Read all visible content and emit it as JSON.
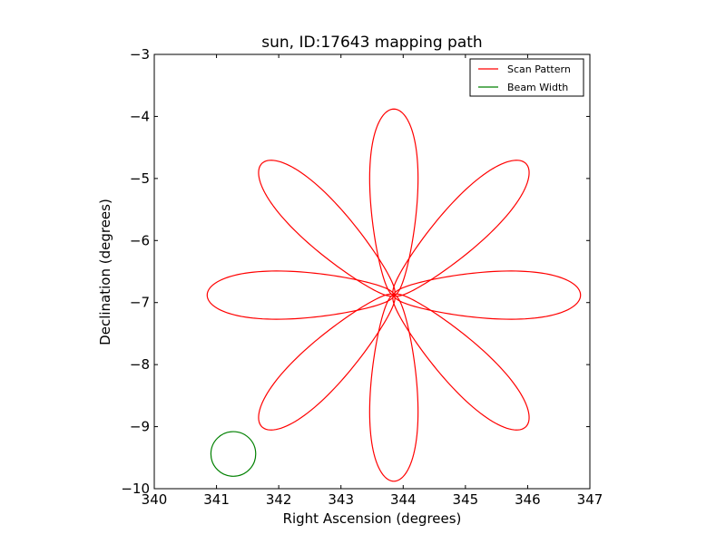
{
  "chart_data": {
    "type": "line",
    "title": "sun, ID:17643 mapping path",
    "xlabel": "Right Ascension (degrees)",
    "ylabel": "Declination (degrees)",
    "xlim": [
      340,
      347
    ],
    "ylim": [
      -10,
      -3
    ],
    "xticks": [
      "340",
      "341",
      "342",
      "343",
      "344",
      "345",
      "346",
      "347"
    ],
    "yticks": [
      "−3",
      "−4",
      "−5",
      "−6",
      "−7",
      "−8",
      "−9",
      "−10"
    ],
    "legend": {
      "placement": "top-right"
    },
    "grid": false,
    "series": [
      {
        "name": "Scan Pattern",
        "color": "#ff0000",
        "kind": "rose-curve",
        "center": [
          343.85,
          -6.88
        ],
        "petals": 8,
        "radius_deg": 3.0,
        "petal_half_width_deg": 0.42
      },
      {
        "name": "Beam Width",
        "color": "#008000",
        "kind": "circle",
        "center": [
          341.27,
          -9.44
        ],
        "radius_deg": 0.36
      }
    ]
  }
}
